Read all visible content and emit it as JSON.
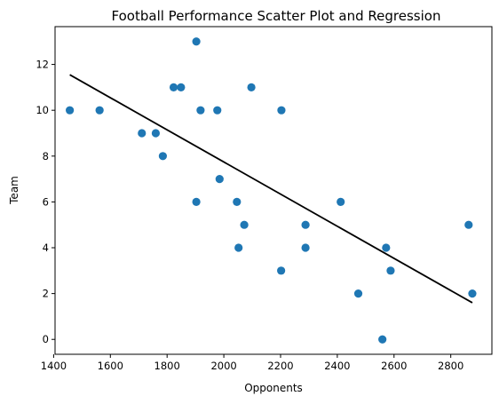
{
  "chart_data": {
    "type": "scatter",
    "title": "Football Performance Scatter Plot and Regression",
    "xlabel": "Opponents",
    "ylabel": "Team",
    "xlim": [
      1405,
      2945
    ],
    "ylim": [
      -0.65,
      13.65
    ],
    "xticks": [
      1400,
      1600,
      1800,
      2000,
      2200,
      2400,
      2600,
      2800
    ],
    "yticks": [
      0,
      2,
      4,
      6,
      8,
      10,
      12
    ],
    "grid": false,
    "legend": "none",
    "points": [
      {
        "x": 1457,
        "y": 10
      },
      {
        "x": 1562,
        "y": 10
      },
      {
        "x": 1711,
        "y": 9
      },
      {
        "x": 1760,
        "y": 9
      },
      {
        "x": 1785,
        "y": 8
      },
      {
        "x": 1823,
        "y": 11
      },
      {
        "x": 1849,
        "y": 11
      },
      {
        "x": 1903,
        "y": 13
      },
      {
        "x": 1918,
        "y": 10
      },
      {
        "x": 1977,
        "y": 10
      },
      {
        "x": 1985,
        "y": 7
      },
      {
        "x": 1903,
        "y": 6
      },
      {
        "x": 2046,
        "y": 6
      },
      {
        "x": 2052,
        "y": 4
      },
      {
        "x": 2072,
        "y": 5
      },
      {
        "x": 2097,
        "y": 11
      },
      {
        "x": 2203,
        "y": 10
      },
      {
        "x": 2202,
        "y": 3
      },
      {
        "x": 2288,
        "y": 5
      },
      {
        "x": 2288,
        "y": 4
      },
      {
        "x": 2412,
        "y": 6
      },
      {
        "x": 2474,
        "y": 2
      },
      {
        "x": 2559,
        "y": 0
      },
      {
        "x": 2572,
        "y": 4
      },
      {
        "x": 2588,
        "y": 3
      },
      {
        "x": 2863,
        "y": 5
      },
      {
        "x": 2876,
        "y": 2
      }
    ],
    "regression_line": {
      "x": [
        1457,
        2876
      ],
      "y": [
        11.55,
        1.6
      ]
    },
    "colors": {
      "points": "#1f77b4",
      "line": "#000000"
    }
  }
}
